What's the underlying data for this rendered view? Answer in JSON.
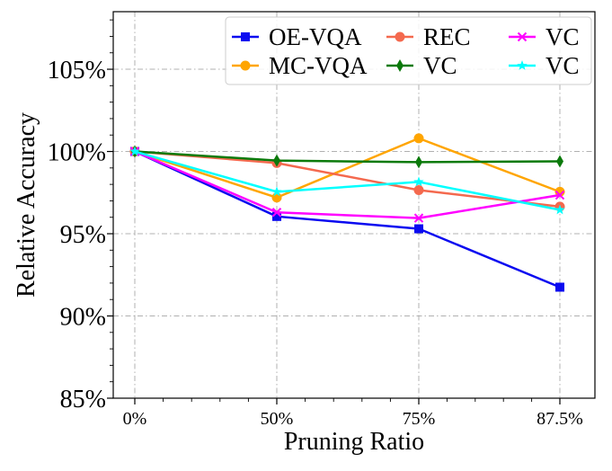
{
  "chart_data": {
    "type": "line",
    "title": "",
    "xlabel": "Pruning Ratio",
    "ylabel": "Relative Accuracy",
    "categories": [
      "0%",
      "50%",
      "75%",
      "87.5%"
    ],
    "x": [
      0,
      50,
      75,
      87.5
    ],
    "ylim": [
      85,
      108.5
    ],
    "yticks": [
      85,
      90,
      95,
      100,
      105
    ],
    "ytick_labels": [
      "85%",
      "90%",
      "95%",
      "100%",
      "105%"
    ],
    "grid": true,
    "legend_position": "top-right",
    "series": [
      {
        "name": "OE-VQA",
        "color": "#0a0af0",
        "marker": "square",
        "values": [
          100,
          96.05,
          95.3,
          91.75
        ]
      },
      {
        "name": "MC-VQA",
        "color": "#ffa500",
        "marker": "circle",
        "values": [
          100,
          97.2,
          100.8,
          97.55
        ]
      },
      {
        "name": "REC",
        "color": "#f4694e",
        "marker": "circle",
        "values": [
          100,
          99.3,
          97.65,
          96.65
        ]
      },
      {
        "name": "VC",
        "color": "#0b7a0b",
        "marker": "thin_diamond",
        "values": [
          100,
          99.45,
          99.35,
          99.4
        ]
      },
      {
        "name": "VC",
        "color": "#ff00ff",
        "marker": "x",
        "values": [
          100,
          96.3,
          95.95,
          97.35
        ]
      },
      {
        "name": "VC",
        "color": "#00ffff",
        "marker": "star",
        "values": [
          100,
          97.55,
          98.15,
          96.45
        ]
      }
    ]
  }
}
